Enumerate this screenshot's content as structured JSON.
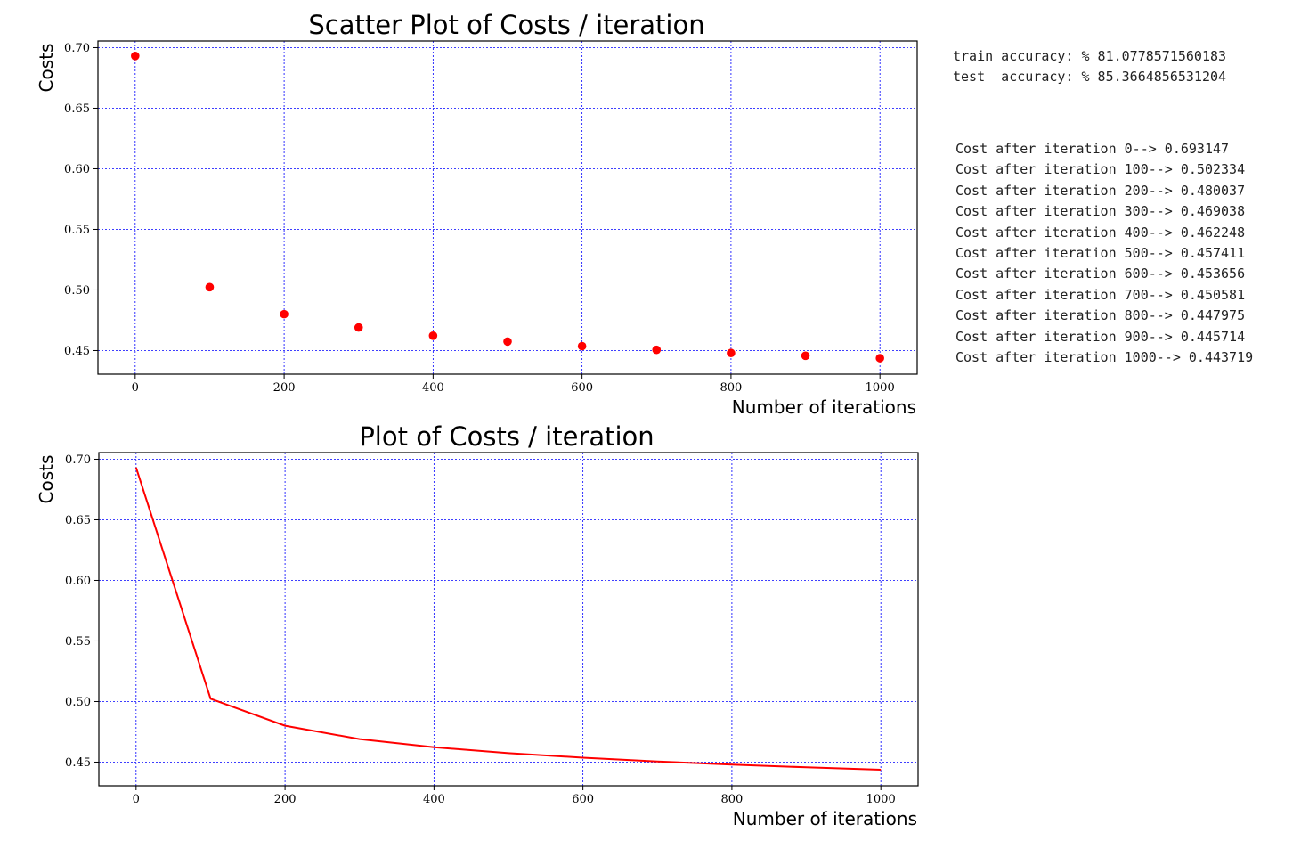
{
  "charts": [
    {
      "id": "scatter",
      "type": "scatter",
      "title": "Scatter Plot of Costs / iteration",
      "xlabel": "Number of iterations",
      "ylabel": "Costs",
      "color": "#ff0000",
      "gridColor": "#0000ff"
    },
    {
      "id": "line",
      "type": "line",
      "title": "Plot of Costs / iteration",
      "xlabel": "Number of iterations",
      "ylabel": "Costs",
      "color": "#ff0000",
      "gridColor": "#0000ff"
    }
  ],
  "chart_data": [
    {
      "type": "scatter",
      "title": "Scatter Plot of Costs / iteration",
      "xlabel": "Number of iterations",
      "ylabel": "Costs",
      "x": [
        0,
        100,
        200,
        300,
        400,
        500,
        600,
        700,
        800,
        900,
        1000
      ],
      "y": [
        0.693147,
        0.502334,
        0.480037,
        0.469038,
        0.462248,
        0.457411,
        0.453656,
        0.450581,
        0.447975,
        0.445714,
        0.443719
      ],
      "xlim": [
        -50,
        1050
      ],
      "ylim": [
        0.4305,
        0.7055
      ],
      "xticks": [
        "0",
        "200",
        "400",
        "600",
        "800",
        "1000"
      ],
      "yticks": [
        "0.45",
        "0.50",
        "0.55",
        "0.60",
        "0.65",
        "0.70"
      ],
      "grid": true
    },
    {
      "type": "line",
      "title": "Plot of Costs / iteration",
      "xlabel": "Number of iterations",
      "ylabel": "Costs",
      "x": [
        0,
        100,
        200,
        300,
        400,
        500,
        600,
        700,
        800,
        900,
        1000
      ],
      "y": [
        0.693147,
        0.502334,
        0.480037,
        0.469038,
        0.462248,
        0.457411,
        0.453656,
        0.450581,
        0.447975,
        0.445714,
        0.443719
      ],
      "xlim": [
        -50,
        1050
      ],
      "ylim": [
        0.4305,
        0.7055
      ],
      "xticks": [
        "0",
        "200",
        "400",
        "600",
        "800",
        "1000"
      ],
      "yticks": [
        "0.45",
        "0.50",
        "0.55",
        "0.60",
        "0.65",
        "0.70"
      ],
      "grid": true
    }
  ],
  "output": {
    "train_accuracy": "train accuracy: % 81.0778571560183",
    "test_accuracy": "test  accuracy: % 85.3664856531204",
    "cost_log": [
      "Cost after iteration 0--> 0.693147",
      "Cost after iteration 100--> 0.502334",
      "Cost after iteration 200--> 0.480037",
      "Cost after iteration 300--> 0.469038",
      "Cost after iteration 400--> 0.462248",
      "Cost after iteration 500--> 0.457411",
      "Cost after iteration 600--> 0.453656",
      "Cost after iteration 700--> 0.450581",
      "Cost after iteration 800--> 0.447975",
      "Cost after iteration 900--> 0.445714",
      "Cost after iteration 1000--> 0.443719"
    ]
  }
}
